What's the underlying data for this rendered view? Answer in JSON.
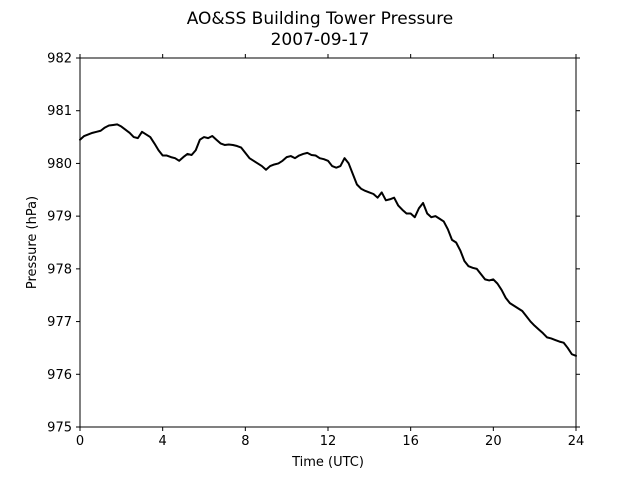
{
  "chart_data": {
    "type": "line",
    "title": "AO&SS Building Tower Pressure",
    "subtitle": "2007-09-17",
    "xlabel": "Time (UTC)",
    "ylabel": "Pressure (hPa)",
    "xlim": [
      0,
      24
    ],
    "ylim": [
      975,
      982
    ],
    "x_ticks": [
      0,
      4,
      8,
      12,
      16,
      20,
      24
    ],
    "y_ticks": [
      975,
      976,
      977,
      978,
      979,
      980,
      981,
      982
    ],
    "grid": false,
    "line_color": "#000000",
    "series": [
      {
        "x": [
          0.0,
          0.2,
          0.4,
          0.6,
          0.8,
          1.0,
          1.2,
          1.4,
          1.6,
          1.8,
          2.0,
          2.2,
          2.4,
          2.6,
          2.8,
          3.0,
          3.2,
          3.4,
          3.6,
          3.8,
          4.0,
          4.2,
          4.4,
          4.6,
          4.8,
          5.0,
          5.2,
          5.4,
          5.6,
          5.8,
          6.0,
          6.2,
          6.4,
          6.6,
          6.8,
          7.0,
          7.2,
          7.4,
          7.6,
          7.8,
          8.0,
          8.2,
          8.4,
          8.6,
          8.8,
          9.0,
          9.2,
          9.4,
          9.6,
          9.8,
          10.0,
          10.2,
          10.4,
          10.6,
          10.8,
          11.0,
          11.2,
          11.4,
          11.6,
          11.8,
          12.0,
          12.2,
          12.4,
          12.6,
          12.8,
          13.0,
          13.2,
          13.4,
          13.6,
          13.8,
          14.0,
          14.2,
          14.4,
          14.6,
          14.8,
          15.0,
          15.2,
          15.4,
          15.6,
          15.8,
          16.0,
          16.2,
          16.4,
          16.6,
          16.8,
          17.0,
          17.2,
          17.4,
          17.6,
          17.8,
          18.0,
          18.2,
          18.4,
          18.6,
          18.8,
          19.0,
          19.2,
          19.4,
          19.6,
          19.8,
          20.0,
          20.2,
          20.4,
          20.6,
          20.8,
          21.0,
          21.2,
          21.4,
          21.6,
          21.8,
          22.0,
          22.2,
          22.4,
          22.6,
          22.8,
          23.0,
          23.2,
          23.4,
          23.6,
          23.8,
          24.0
        ],
        "y": [
          980.45,
          980.52,
          980.55,
          980.58,
          980.6,
          980.62,
          980.68,
          980.72,
          980.73,
          980.74,
          980.7,
          980.64,
          980.58,
          980.5,
          980.48,
          980.6,
          980.55,
          980.5,
          980.38,
          980.25,
          980.15,
          980.15,
          980.12,
          980.1,
          980.05,
          980.12,
          980.18,
          980.16,
          980.25,
          980.45,
          980.5,
          980.48,
          980.52,
          980.45,
          980.38,
          980.35,
          980.36,
          980.35,
          980.33,
          980.3,
          980.2,
          980.1,
          980.05,
          980.0,
          979.95,
          979.88,
          979.95,
          979.98,
          980.0,
          980.05,
          980.12,
          980.14,
          980.1,
          980.15,
          980.18,
          980.2,
          980.16,
          980.15,
          980.1,
          980.08,
          980.05,
          979.95,
          979.92,
          979.95,
          980.1,
          980.0,
          979.8,
          979.6,
          979.52,
          979.48,
          979.45,
          979.42,
          979.35,
          979.45,
          979.3,
          979.32,
          979.35,
          979.2,
          979.12,
          979.05,
          979.05,
          978.98,
          979.15,
          979.25,
          979.05,
          978.98,
          979.0,
          978.95,
          978.9,
          978.75,
          978.55,
          978.5,
          978.35,
          978.15,
          978.05,
          978.02,
          978.0,
          977.9,
          977.8,
          977.78,
          977.8,
          977.72,
          977.6,
          977.45,
          977.35,
          977.3,
          977.25,
          977.2,
          977.1,
          977.0,
          976.92,
          976.85,
          976.78,
          976.7,
          976.68,
          976.65,
          976.62,
          976.6,
          976.5,
          976.38,
          976.35
        ]
      }
    ]
  }
}
